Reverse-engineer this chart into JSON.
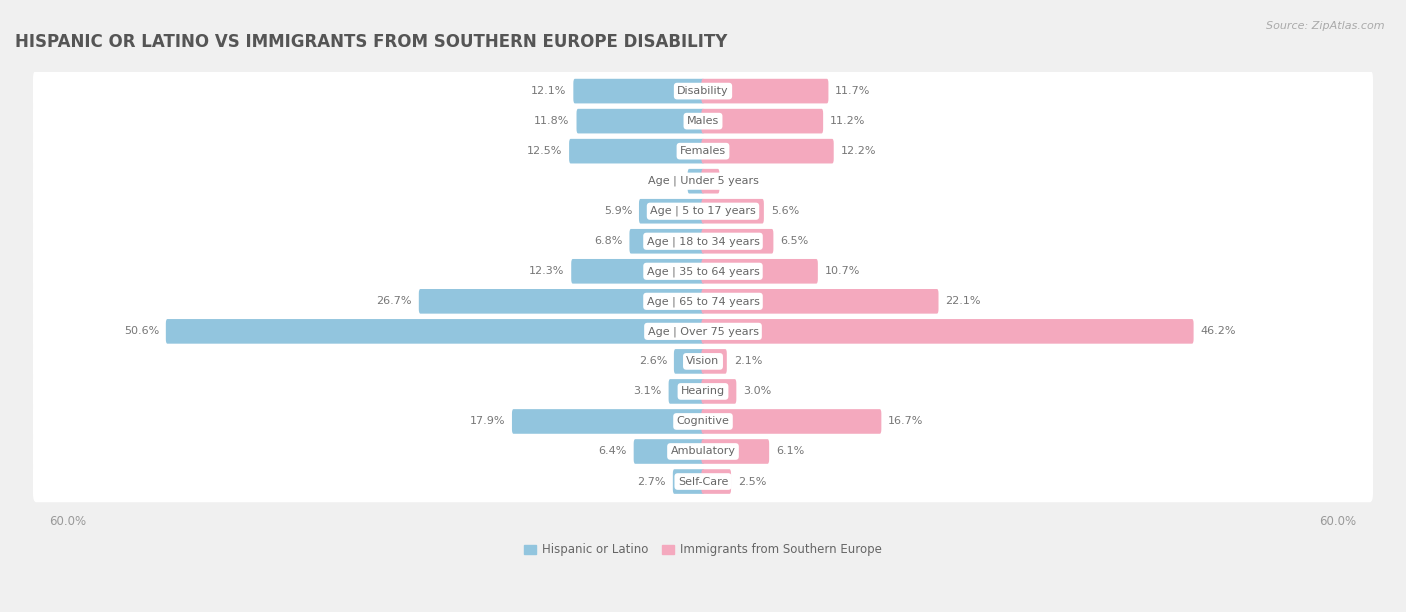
{
  "title": "HISPANIC OR LATINO VS IMMIGRANTS FROM SOUTHERN EUROPE DISABILITY",
  "source": "Source: ZipAtlas.com",
  "categories": [
    "Disability",
    "Males",
    "Females",
    "Age | Under 5 years",
    "Age | 5 to 17 years",
    "Age | 18 to 34 years",
    "Age | 35 to 64 years",
    "Age | 65 to 74 years",
    "Age | Over 75 years",
    "Vision",
    "Hearing",
    "Cognitive",
    "Ambulatory",
    "Self-Care"
  ],
  "left_values": [
    12.1,
    11.8,
    12.5,
    1.3,
    5.9,
    6.8,
    12.3,
    26.7,
    50.6,
    2.6,
    3.1,
    17.9,
    6.4,
    2.7
  ],
  "right_values": [
    11.7,
    11.2,
    12.2,
    1.4,
    5.6,
    6.5,
    10.7,
    22.1,
    46.2,
    2.1,
    3.0,
    16.7,
    6.1,
    2.5
  ],
  "left_color": "#92c5de",
  "right_color": "#f4a9be",
  "left_label": "Hispanic or Latino",
  "right_label": "Immigrants from Southern Europe",
  "axis_max": 60.0,
  "axis_label": "60.0%",
  "background_color": "#f0f0f0",
  "row_bg_color": "#ffffff",
  "title_fontsize": 12,
  "source_fontsize": 8,
  "label_fontsize": 8.5,
  "value_fontsize": 8,
  "category_fontsize": 8
}
